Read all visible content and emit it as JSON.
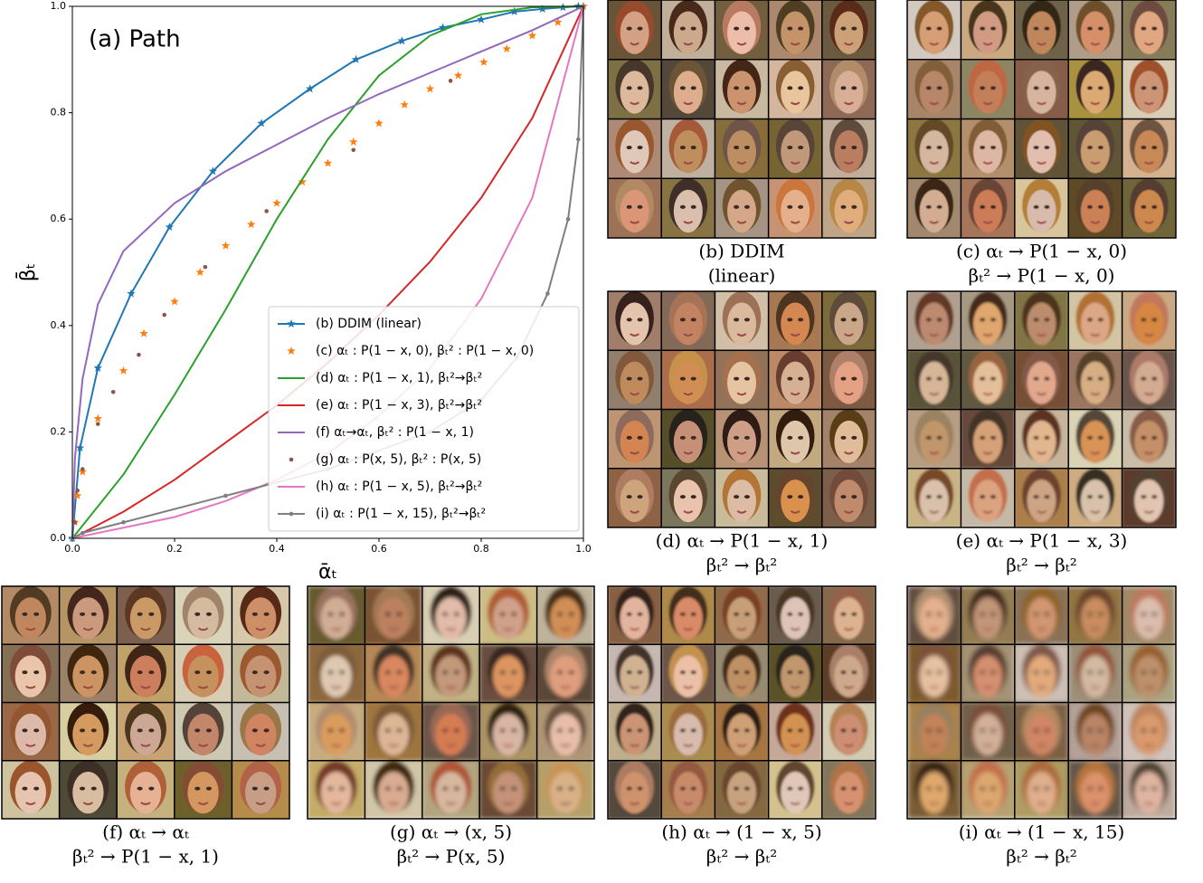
{
  "chart_data": {
    "type": "line",
    "annotation": "(a) Path",
    "x_label": "ᾱₜ",
    "y_label": "β̄ₜ",
    "xlim": [
      0,
      1
    ],
    "ylim": [
      0,
      1
    ],
    "xticks": [
      {
        "value": 0,
        "label": "0.0"
      },
      0.2,
      0.4,
      0.6,
      0.8,
      {
        "value": 1,
        "label": "1.0"
      }
    ],
    "yticks": [
      {
        "value": 0,
        "label": "0.0"
      },
      0.2,
      0.4,
      0.6,
      0.8,
      {
        "value": 1,
        "label": "1.0"
      }
    ],
    "grid": false,
    "legend": "lower right",
    "series": [
      {
        "name": "(b) DDIM (linear)",
        "color": "#1f77b4",
        "style": "line",
        "marker": "star",
        "x": [
          0,
          0.015,
          0.05,
          0.115,
          0.19,
          0.275,
          0.37,
          0.465,
          0.555,
          0.645,
          0.725,
          0.8,
          0.865,
          0.92,
          0.96,
          0.99,
          1
        ],
        "values": [
          0,
          0.17,
          0.32,
          0.46,
          0.585,
          0.69,
          0.78,
          0.845,
          0.9,
          0.935,
          0.96,
          0.975,
          0.99,
          0.995,
          0.998,
          1,
          1
        ]
      },
      {
        "name": "(c) αₜ : P(1 − x, 0), βₜ² : P(1 − x, 0)",
        "color": "#ff7f0e",
        "style": "markers",
        "marker": "star",
        "x": [
          0.005,
          0.01,
          0.02,
          0.05,
          0.1,
          0.14,
          0.2,
          0.25,
          0.3,
          0.35,
          0.4,
          0.45,
          0.5,
          0.55,
          0.6,
          0.65,
          0.7,
          0.755,
          0.805,
          0.85,
          0.9,
          0.95,
          1
        ],
        "values": [
          0.03,
          0.08,
          0.125,
          0.225,
          0.315,
          0.385,
          0.445,
          0.5,
          0.55,
          0.59,
          0.63,
          0.67,
          0.705,
          0.745,
          0.78,
          0.815,
          0.845,
          0.87,
          0.895,
          0.92,
          0.945,
          0.97,
          1
        ]
      },
      {
        "name": "(d) αₜ : P(1 − x, 1), βₜ²→βₜ²",
        "color": "#2ca02c",
        "style": "line",
        "marker": "none",
        "x": [
          0,
          0.1,
          0.2,
          0.3,
          0.4,
          0.5,
          0.6,
          0.7,
          0.8,
          0.9,
          1
        ],
        "values": [
          0,
          0.12,
          0.27,
          0.43,
          0.6,
          0.75,
          0.87,
          0.945,
          0.985,
          0.998,
          1
        ]
      },
      {
        "name": "(e) αₜ : P(1 − x, 3), βₜ²→βₜ²",
        "color": "#d62728",
        "style": "line",
        "marker": "none",
        "x": [
          0,
          0.1,
          0.2,
          0.3,
          0.4,
          0.5,
          0.6,
          0.7,
          0.8,
          0.9,
          1
        ],
        "values": [
          0,
          0.05,
          0.11,
          0.18,
          0.25,
          0.33,
          0.42,
          0.52,
          0.64,
          0.79,
          1
        ]
      },
      {
        "name": "(f) αₜ→αₜ, βₜ² : P(1 − x, 1)",
        "color": "#9467bd",
        "style": "line",
        "marker": "none",
        "x": [
          0,
          0.005,
          0.02,
          0.05,
          0.1,
          0.2,
          0.3,
          0.4,
          0.5,
          0.6,
          0.7,
          0.8,
          0.9,
          1
        ],
        "values": [
          0,
          0.15,
          0.3,
          0.44,
          0.54,
          0.63,
          0.69,
          0.74,
          0.79,
          0.835,
          0.875,
          0.915,
          0.955,
          1
        ]
      },
      {
        "name": "(g) αₜ : P(x, 5), βₜ² : P(x, 5)",
        "color": "#8c564b",
        "style": "markers",
        "marker": "dot",
        "x": [
          0.005,
          0.01,
          0.02,
          0.05,
          0.08,
          0.13,
          0.18,
          0.26,
          0.38,
          0.55,
          0.74,
          1
        ],
        "values": [
          0.03,
          0.09,
          0.13,
          0.215,
          0.275,
          0.345,
          0.42,
          0.51,
          0.615,
          0.73,
          0.86,
          1
        ]
      },
      {
        "name": "(h) αₜ : P(1 − x, 5), βₜ²→βₜ²",
        "color": "#e377c2",
        "style": "line",
        "marker": "none",
        "x": [
          0,
          0.1,
          0.2,
          0.3,
          0.4,
          0.5,
          0.6,
          0.7,
          0.8,
          0.9,
          1
        ],
        "values": [
          0,
          0.02,
          0.04,
          0.07,
          0.11,
          0.16,
          0.23,
          0.32,
          0.45,
          0.64,
          1
        ]
      },
      {
        "name": "(i) αₜ : P(1 − x, 15), βₜ²→βₜ²",
        "color": "#7f7f7f",
        "style": "line",
        "marker": "dot",
        "x": [
          0,
          0.02,
          0.1,
          0.3,
          0.5,
          0.7,
          0.8,
          0.87,
          0.93,
          0.97,
          0.99,
          1
        ],
        "values": [
          0,
          0.01,
          0.03,
          0.08,
          0.13,
          0.2,
          0.26,
          0.34,
          0.46,
          0.6,
          0.75,
          1
        ]
      }
    ]
  },
  "panels": [
    {
      "caption": [
        "(b) DDIM",
        "(linear)"
      ]
    },
    {
      "caption": [
        "(c) αₜ  → P(1 − x, 0)",
        "βₜ² → P(1 − x, 0)"
      ]
    },
    {
      "caption": [
        "(d) αₜ  → P(1 − x, 1)",
        "βₜ² → βₜ²"
      ]
    },
    {
      "caption": [
        "(e) αₜ  → P(1 − x, 3)",
        "βₜ² → βₜ²"
      ]
    },
    {
      "caption": [
        "(f) αₜ  → αₜ",
        "βₜ² → P(1 − x, 1)"
      ]
    },
    {
      "caption": [
        "(g) αₜ  → (x, 5)",
        "βₜ² → P(x, 5)"
      ]
    },
    {
      "caption": [
        "(h) αₜ  → (1 − x, 5)",
        "βₜ² → βₜ²"
      ]
    },
    {
      "caption": [
        "(i) αₜ  → (1 − x, 15)",
        "βₜ² → βₜ²"
      ]
    }
  ]
}
